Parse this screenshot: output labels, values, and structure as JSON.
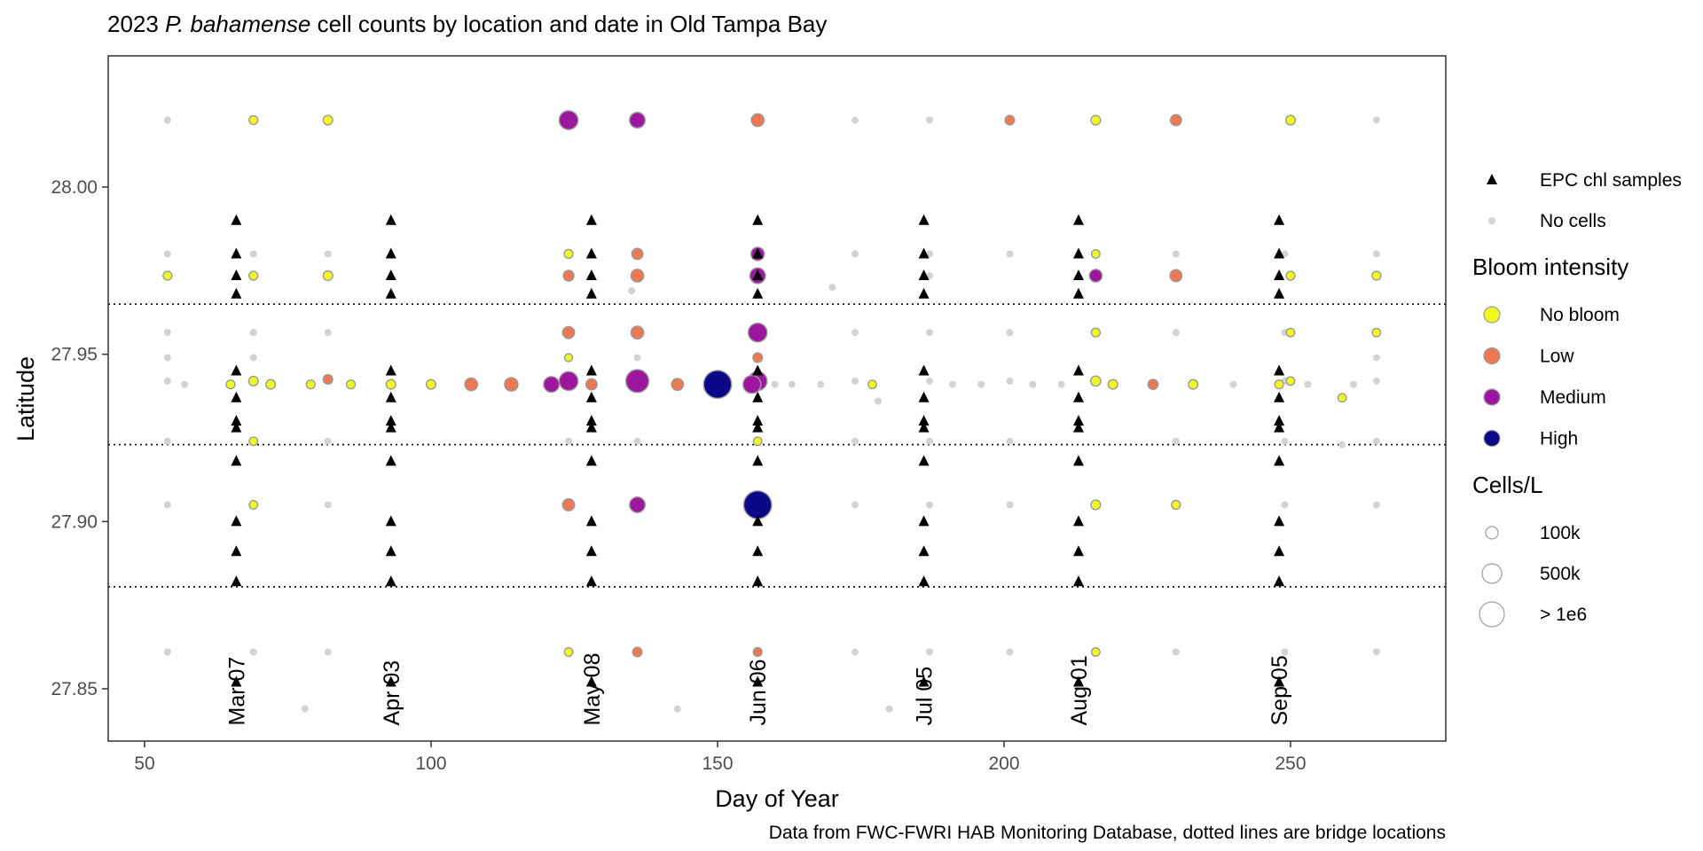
{
  "chart_data": {
    "type": "scatter",
    "title": {
      "prefix": "2023 ",
      "species": "P. bahamense",
      "suffix": " cell counts by location and date in Old Tampa Bay"
    },
    "xlabel": "Day of Year",
    "ylabel": "Latitude",
    "caption": "Data from FWC-FWRI HAB Monitoring Database, dotted lines are bridge locations",
    "xlim": [
      43,
      274
    ],
    "ylim": [
      27.835,
      28.04
    ],
    "x_ticks": [
      50,
      100,
      150,
      200,
      250
    ],
    "y_ticks": [
      27.85,
      27.9,
      27.95,
      28.0
    ],
    "y_tick_labels": [
      "27.85",
      "27.90",
      "27.95",
      "28.00"
    ],
    "grid": false,
    "bridge_latitudes": [
      27.965,
      27.923,
      27.8805
    ],
    "legend": {
      "position": "right",
      "shape_entries": [
        {
          "label": "EPC chl samples",
          "marker": "triangle",
          "color": "#000000"
        },
        {
          "label": "No cells",
          "marker": "circle",
          "color": "#d3d3d3"
        }
      ],
      "intensity_title": "Bloom intensity",
      "intensity_entries": [
        {
          "label": "No bloom",
          "color": "#f0f921"
        },
        {
          "label": "Low",
          "color": "#ed7953"
        },
        {
          "label": "Medium",
          "color": "#9c179e"
        },
        {
          "label": "High",
          "color": "#0d0887"
        }
      ],
      "size_title": "Cells/L",
      "size_entries": [
        "100k",
        "500k",
        "> 1e6"
      ]
    },
    "epc_sample_dates": [
      {
        "doy": 66,
        "label": "Mar 07"
      },
      {
        "doy": 93,
        "label": "Apr 03"
      },
      {
        "doy": 128,
        "label": "May 08"
      },
      {
        "doy": 157,
        "label": "Jun 06"
      },
      {
        "doy": 186,
        "label": "Jul 05"
      },
      {
        "doy": 213,
        "label": "Aug 01"
      },
      {
        "doy": 248,
        "label": "Sep 05"
      }
    ],
    "epc_station_latitudes": [
      27.99,
      27.98,
      27.9735,
      27.968,
      27.945,
      27.937,
      27.93,
      27.928,
      27.918,
      27.9,
      27.891,
      27.882,
      27.852
    ],
    "no_cell_samples": [
      [
        54,
        28.02
      ],
      [
        54,
        27.98
      ],
      [
        54,
        27.9565
      ],
      [
        54,
        27.949
      ],
      [
        54,
        27.942
      ],
      [
        54,
        27.924
      ],
      [
        54,
        27.905
      ],
      [
        54,
        27.861
      ],
      [
        57,
        27.941
      ],
      [
        69,
        27.98
      ],
      [
        69,
        27.9565
      ],
      [
        69,
        27.949
      ],
      [
        69,
        27.861
      ],
      [
        78,
        27.844
      ],
      [
        82,
        27.98
      ],
      [
        82,
        27.9565
      ],
      [
        82,
        27.924
      ],
      [
        82,
        27.905
      ],
      [
        82,
        27.861
      ],
      [
        124,
        28.02
      ],
      [
        124,
        27.924
      ],
      [
        135,
        27.969
      ],
      [
        136,
        27.949
      ],
      [
        136,
        27.924
      ],
      [
        143,
        27.844
      ],
      [
        157,
        27.9565
      ],
      [
        160,
        27.941
      ],
      [
        163,
        27.941
      ],
      [
        170,
        27.97
      ],
      [
        174,
        28.02
      ],
      [
        174,
        27.98
      ],
      [
        174,
        27.9565
      ],
      [
        174,
        27.942
      ],
      [
        174,
        27.924
      ],
      [
        174,
        27.905
      ],
      [
        174,
        27.861
      ],
      [
        168,
        27.941
      ],
      [
        178,
        27.936
      ],
      [
        180,
        27.844
      ],
      [
        187,
        28.02
      ],
      [
        187,
        27.98
      ],
      [
        187,
        27.9735
      ],
      [
        187,
        27.9565
      ],
      [
        187,
        27.942
      ],
      [
        187,
        27.924
      ],
      [
        187,
        27.905
      ],
      [
        187,
        27.861
      ],
      [
        191,
        27.941
      ],
      [
        196,
        27.941
      ],
      [
        201,
        27.98
      ],
      [
        201,
        27.9565
      ],
      [
        201,
        27.942
      ],
      [
        201,
        27.924
      ],
      [
        201,
        27.905
      ],
      [
        201,
        27.861
      ],
      [
        205,
        27.941
      ],
      [
        210,
        27.941
      ],
      [
        230,
        28.02
      ],
      [
        230,
        27.98
      ],
      [
        230,
        27.9565
      ],
      [
        230,
        27.924
      ],
      [
        230,
        27.861
      ],
      [
        240,
        27.941
      ],
      [
        249,
        27.98
      ],
      [
        249,
        27.9565
      ],
      [
        249,
        27.942
      ],
      [
        249,
        27.924
      ],
      [
        249,
        27.905
      ],
      [
        249,
        27.861
      ],
      [
        253,
        27.941
      ],
      [
        259,
        27.923
      ],
      [
        261,
        27.941
      ],
      [
        265,
        28.02
      ],
      [
        265,
        27.98
      ],
      [
        265,
        27.949
      ],
      [
        265,
        27.942
      ],
      [
        265,
        27.924
      ],
      [
        265,
        27.905
      ],
      [
        265,
        27.861
      ]
    ],
    "bloom_samples": [
      {
        "doy": 54,
        "lat": 27.9735,
        "intensity": "No bloom",
        "cells": 20000
      },
      {
        "doy": 65,
        "lat": 27.941,
        "intensity": "No bloom",
        "cells": 20000
      },
      {
        "doy": 69,
        "lat": 28.02,
        "intensity": "No bloom",
        "cells": 20000
      },
      {
        "doy": 69,
        "lat": 27.9735,
        "intensity": "No bloom",
        "cells": 20000
      },
      {
        "doy": 69,
        "lat": 27.942,
        "intensity": "No bloom",
        "cells": 30000
      },
      {
        "doy": 69,
        "lat": 27.924,
        "intensity": "No bloom",
        "cells": 15000
      },
      {
        "doy": 69,
        "lat": 27.905,
        "intensity": "No bloom",
        "cells": 15000
      },
      {
        "doy": 72,
        "lat": 27.941,
        "intensity": "No bloom",
        "cells": 30000
      },
      {
        "doy": 82,
        "lat": 28.02,
        "intensity": "No bloom",
        "cells": 30000
      },
      {
        "doy": 82,
        "lat": 27.9735,
        "intensity": "No bloom",
        "cells": 30000
      },
      {
        "doy": 79,
        "lat": 27.941,
        "intensity": "No bloom",
        "cells": 20000
      },
      {
        "doy": 82,
        "lat": 27.9425,
        "intensity": "Low",
        "cells": 30000
      },
      {
        "doy": 86,
        "lat": 27.941,
        "intensity": "No bloom",
        "cells": 20000
      },
      {
        "doy": 93,
        "lat": 27.941,
        "intensity": "No bloom",
        "cells": 30000
      },
      {
        "doy": 100,
        "lat": 27.941,
        "intensity": "No bloom",
        "cells": 30000
      },
      {
        "doy": 107,
        "lat": 27.941,
        "intensity": "Low",
        "cells": 100000
      },
      {
        "doy": 114,
        "lat": 27.941,
        "intensity": "Low",
        "cells": 120000
      },
      {
        "doy": 121,
        "lat": 27.941,
        "intensity": "Medium",
        "cells": 200000
      },
      {
        "doy": 124,
        "lat": 28.02,
        "intensity": "Medium",
        "cells": 350000
      },
      {
        "doy": 124,
        "lat": 27.98,
        "intensity": "No bloom",
        "cells": 20000
      },
      {
        "doy": 124,
        "lat": 27.9735,
        "intensity": "Low",
        "cells": 50000
      },
      {
        "doy": 124,
        "lat": 27.9565,
        "intensity": "Low",
        "cells": 80000
      },
      {
        "doy": 124,
        "lat": 27.949,
        "intensity": "No bloom",
        "cells": 10000
      },
      {
        "doy": 124,
        "lat": 27.942,
        "intensity": "Medium",
        "cells": 350000
      },
      {
        "doy": 124,
        "lat": 27.905,
        "intensity": "Low",
        "cells": 80000
      },
      {
        "doy": 124,
        "lat": 27.861,
        "intensity": "No bloom",
        "cells": 15000
      },
      {
        "doy": 128,
        "lat": 27.941,
        "intensity": "Low",
        "cells": 60000
      },
      {
        "doy": 136,
        "lat": 28.02,
        "intensity": "Medium",
        "cells": 200000
      },
      {
        "doy": 136,
        "lat": 27.98,
        "intensity": "Low",
        "cells": 60000
      },
      {
        "doy": 136,
        "lat": 27.9735,
        "intensity": "Low",
        "cells": 100000
      },
      {
        "doy": 136,
        "lat": 27.9565,
        "intensity": "Low",
        "cells": 100000
      },
      {
        "doy": 136,
        "lat": 27.942,
        "intensity": "Medium",
        "cells": 600000
      },
      {
        "doy": 136,
        "lat": 27.905,
        "intensity": "Medium",
        "cells": 200000
      },
      {
        "doy": 136,
        "lat": 27.861,
        "intensity": "Low",
        "cells": 30000
      },
      {
        "doy": 143,
        "lat": 27.941,
        "intensity": "Low",
        "cells": 80000
      },
      {
        "doy": 150,
        "lat": 27.941,
        "intensity": "High",
        "cells": 1000000
      },
      {
        "doy": 156,
        "lat": 27.941,
        "intensity": "Medium",
        "cells": 300000
      },
      {
        "doy": 157,
        "lat": 28.02,
        "intensity": "Low",
        "cells": 100000
      },
      {
        "doy": 157,
        "lat": 27.98,
        "intensity": "Medium",
        "cells": 120000
      },
      {
        "doy": 157,
        "lat": 27.9735,
        "intensity": "Medium",
        "cells": 200000
      },
      {
        "doy": 157,
        "lat": 27.9565,
        "intensity": "Medium",
        "cells": 350000
      },
      {
        "doy": 157,
        "lat": 27.949,
        "intensity": "Low",
        "cells": 30000
      },
      {
        "doy": 157,
        "lat": 27.942,
        "intensity": "Medium",
        "cells": 350000
      },
      {
        "doy": 157,
        "lat": 27.924,
        "intensity": "No bloom",
        "cells": 15000
      },
      {
        "doy": 157,
        "lat": 27.905,
        "intensity": "High",
        "cells": 1000000
      },
      {
        "doy": 157,
        "lat": 27.861,
        "intensity": "Low",
        "cells": 20000
      },
      {
        "doy": 177,
        "lat": 27.941,
        "intensity": "No bloom",
        "cells": 15000
      },
      {
        "doy": 201,
        "lat": 28.02,
        "intensity": "Low",
        "cells": 30000
      },
      {
        "doy": 216,
        "lat": 28.02,
        "intensity": "No bloom",
        "cells": 30000
      },
      {
        "doy": 216,
        "lat": 27.98,
        "intensity": "No bloom",
        "cells": 15000
      },
      {
        "doy": 216,
        "lat": 27.9735,
        "intensity": "Medium",
        "cells": 100000
      },
      {
        "doy": 216,
        "lat": 27.9565,
        "intensity": "No bloom",
        "cells": 20000
      },
      {
        "doy": 216,
        "lat": 27.942,
        "intensity": "No bloom",
        "cells": 40000
      },
      {
        "doy": 216,
        "lat": 27.905,
        "intensity": "No bloom",
        "cells": 30000
      },
      {
        "doy": 216,
        "lat": 27.861,
        "intensity": "No bloom",
        "cells": 15000
      },
      {
        "doy": 219,
        "lat": 27.941,
        "intensity": "No bloom",
        "cells": 30000
      },
      {
        "doy": 226,
        "lat": 27.941,
        "intensity": "Low",
        "cells": 40000
      },
      {
        "doy": 230,
        "lat": 28.02,
        "intensity": "Low",
        "cells": 60000
      },
      {
        "doy": 230,
        "lat": 27.9735,
        "intensity": "Low",
        "cells": 80000
      },
      {
        "doy": 230,
        "lat": 27.905,
        "intensity": "No bloom",
        "cells": 20000
      },
      {
        "doy": 233,
        "lat": 27.941,
        "intensity": "No bloom",
        "cells": 30000
      },
      {
        "doy": 248,
        "lat": 27.941,
        "intensity": "No bloom",
        "cells": 20000
      },
      {
        "doy": 250,
        "lat": 28.02,
        "intensity": "No bloom",
        "cells": 30000
      },
      {
        "doy": 250,
        "lat": 27.9735,
        "intensity": "No bloom",
        "cells": 20000
      },
      {
        "doy": 250,
        "lat": 27.9565,
        "intensity": "No bloom",
        "cells": 15000
      },
      {
        "doy": 250,
        "lat": 27.942,
        "intensity": "No bloom",
        "cells": 15000
      },
      {
        "doy": 259,
        "lat": 27.937,
        "intensity": "No bloom",
        "cells": 15000
      },
      {
        "doy": 265,
        "lat": 27.9735,
        "intensity": "No bloom",
        "cells": 20000
      },
      {
        "doy": 265,
        "lat": 27.9565,
        "intensity": "No bloom",
        "cells": 15000
      }
    ]
  }
}
